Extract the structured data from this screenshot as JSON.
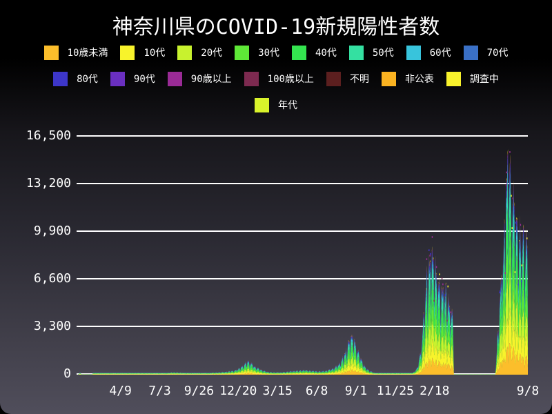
{
  "title": "神奈川県のCOVID-19新規陽性者数",
  "chart_data": {
    "type": "area",
    "stacked": true,
    "title": "神奈川県のCOVID-19新規陽性者数",
    "xlabel": "",
    "ylabel": "",
    "ylim": [
      0,
      16500
    ],
    "grid": true,
    "grid_color": "#ffffff",
    "background_top": "#000000",
    "background_bottom": "#504e5b",
    "text_color": "#ffffff",
    "yticks": [
      {
        "value": 0,
        "label": "0"
      },
      {
        "value": 3300,
        "label": "3,300"
      },
      {
        "value": 6600,
        "label": "6,600"
      },
      {
        "value": 9900,
        "label": "9,900"
      },
      {
        "value": 13200,
        "label": "13,200"
      },
      {
        "value": 16500,
        "label": "16,500"
      }
    ],
    "xticks": [
      {
        "label": "4/9",
        "day": 92
      },
      {
        "label": "7/3",
        "day": 177
      },
      {
        "label": "9/26",
        "day": 262
      },
      {
        "label": "12/20",
        "day": 347
      },
      {
        "label": "3/15",
        "day": 432
      },
      {
        "label": "6/8",
        "day": 517
      },
      {
        "label": "9/1",
        "day": 602
      },
      {
        "label": "11/25",
        "day": 687
      },
      {
        "label": "2/18",
        "day": 772
      },
      {
        "label": "9/8",
        "day": 974
      }
    ],
    "days_total": 975,
    "legend_rows": [
      8,
      7,
      1
    ],
    "series": [
      {
        "name": "10歳未満",
        "color": "#fcbe2b",
        "share": 0.125
      },
      {
        "name": "10代",
        "color": "#f8f32b",
        "share": 0.14
      },
      {
        "name": "20代",
        "color": "#c8f22e",
        "share": 0.17
      },
      {
        "name": "30代",
        "color": "#5ee837",
        "share": 0.15
      },
      {
        "name": "40代",
        "color": "#34e44f",
        "share": 0.15
      },
      {
        "name": "50代",
        "color": "#34e0a1",
        "share": 0.115
      },
      {
        "name": "60代",
        "color": "#38c4dc",
        "share": 0.055
      },
      {
        "name": "70代",
        "color": "#3a70c6",
        "share": 0.038
      },
      {
        "name": "80代",
        "color": "#3d36c9",
        "share": 0.026
      },
      {
        "name": "90代",
        "color": "#6a2fc0",
        "share": 0.013
      },
      {
        "name": "90歳以上",
        "color": "#9a2b96",
        "share": 0.005
      },
      {
        "name": "100歳以上",
        "color": "#7d2a50",
        "share": 0.001
      },
      {
        "name": "不明",
        "color": "#5c1f1f",
        "share": 0.002
      },
      {
        "name": "非公表",
        "color": "#fbb321",
        "share": 0.004
      },
      {
        "name": "調査中",
        "color": "#f9f22c",
        "share": 0.006
      },
      {
        "name": "年代",
        "color": "#d9f32b",
        "share": 0
      }
    ],
    "total_daily_profile": [
      [
        0,
        0
      ],
      [
        5,
        1
      ],
      [
        8,
        0
      ],
      [
        30,
        0
      ],
      [
        38,
        2
      ],
      [
        50,
        3
      ],
      [
        70,
        15
      ],
      [
        80,
        40
      ],
      [
        92,
        90
      ],
      [
        100,
        75
      ],
      [
        108,
        50
      ],
      [
        120,
        20
      ],
      [
        135,
        12
      ],
      [
        150,
        15
      ],
      [
        165,
        25
      ],
      [
        180,
        50
      ],
      [
        195,
        90
      ],
      [
        206,
        120
      ],
      [
        215,
        110
      ],
      [
        228,
        85
      ],
      [
        245,
        55
      ],
      [
        262,
        60
      ],
      [
        280,
        75
      ],
      [
        300,
        110
      ],
      [
        320,
        160
      ],
      [
        337,
        230
      ],
      [
        350,
        420
      ],
      [
        358,
        600
      ],
      [
        367,
        950
      ],
      [
        374,
        800
      ],
      [
        385,
        480
      ],
      [
        399,
        270
      ],
      [
        412,
        150
      ],
      [
        425,
        120
      ],
      [
        440,
        130
      ],
      [
        455,
        170
      ],
      [
        470,
        210
      ],
      [
        490,
        285
      ],
      [
        505,
        230
      ],
      [
        519,
        180
      ],
      [
        535,
        210
      ],
      [
        550,
        350
      ],
      [
        562,
        600
      ],
      [
        572,
        1050
      ],
      [
        582,
        1800
      ],
      [
        590,
        2700
      ],
      [
        596,
        2600
      ],
      [
        604,
        1900
      ],
      [
        611,
        1250
      ],
      [
        620,
        600
      ],
      [
        630,
        250
      ],
      [
        642,
        90
      ],
      [
        655,
        35
      ],
      [
        670,
        18
      ],
      [
        685,
        12
      ],
      [
        700,
        18
      ],
      [
        715,
        30
      ],
      [
        725,
        80
      ],
      [
        733,
        350
      ],
      [
        740,
        1200
      ],
      [
        746,
        2900
      ],
      [
        752,
        5500
      ],
      [
        758,
        7600
      ],
      [
        764,
        8800
      ],
      [
        770,
        8200
      ],
      [
        776,
        7400
      ],
      [
        783,
        6600
      ],
      [
        790,
        6000
      ],
      [
        800,
        5400
      ],
      [
        808,
        4500
      ],
      [
        813,
        3800
      ],
      [
        814,
        0
      ],
      [
        903,
        0
      ],
      [
        905,
        900
      ],
      [
        910,
        3500
      ],
      [
        916,
        6500
      ],
      [
        922,
        9500
      ],
      [
        927,
        12500
      ],
      [
        932,
        16000
      ],
      [
        936,
        14500
      ],
      [
        941,
        12500
      ],
      [
        948,
        11000
      ],
      [
        955,
        10200
      ],
      [
        962,
        9700
      ],
      [
        968,
        9200
      ],
      [
        974,
        8800
      ]
    ]
  }
}
